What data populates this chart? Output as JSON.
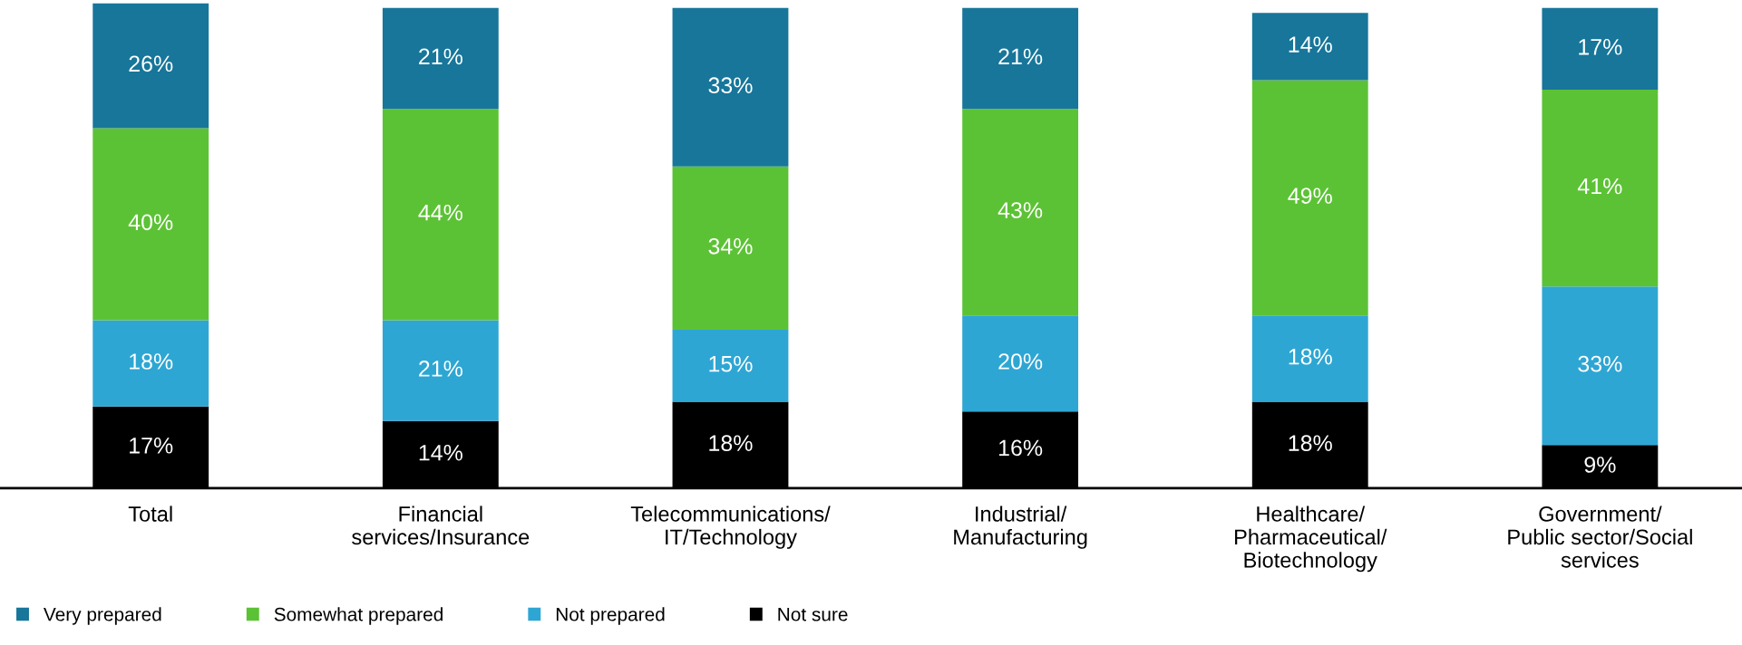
{
  "chart_data": {
    "type": "bar",
    "stacked": true,
    "legend": "bottom",
    "grid": false,
    "categories": [
      "Total",
      "Financial\nservices/Insurance",
      "Telecommunications/\nIT/Technology",
      "Industrial/\nManufacturing",
      "Healthcare/\nPharmaceutical/\nBiotechnology",
      "Government/\nPublic sector/Social\nservices"
    ],
    "series": [
      {
        "name": "Not sure",
        "color": "#000000",
        "values": [
          17,
          14,
          18,
          16,
          18,
          9
        ],
        "value_labels": [
          "17%",
          "14%",
          "18%",
          "16%",
          "18%",
          "9%"
        ]
      },
      {
        "name": "Not prepared",
        "color": "#2ea6d3",
        "values": [
          18,
          21,
          15,
          20,
          18,
          33
        ],
        "value_labels": [
          "18%",
          "21%",
          "15%",
          "20%",
          "18%",
          "33%"
        ]
      },
      {
        "name": "Somewhat prepared",
        "color": "#5cc235",
        "values": [
          40,
          44,
          34,
          43,
          49,
          41
        ],
        "value_labels": [
          "40%",
          "44%",
          "34%",
          "43%",
          "49%",
          "41%"
        ]
      },
      {
        "name": "Very prepared",
        "color": "#17769a",
        "values": [
          26,
          21,
          33,
          21,
          14,
          17
        ],
        "value_labels": [
          "26%",
          "21%",
          "33%",
          "21%",
          "14%",
          "17%"
        ]
      }
    ]
  }
}
